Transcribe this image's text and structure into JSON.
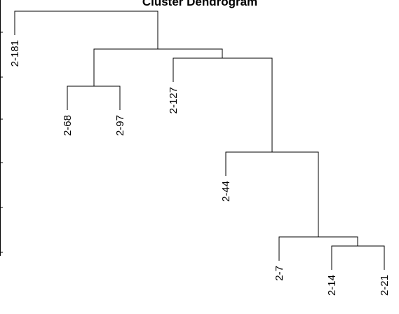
{
  "title": "Cluster Dendrogram",
  "leaves": [
    "2-181",
    "2-68",
    "2-97",
    "2-127",
    "2-44",
    "2-7",
    "2-14",
    "2-21"
  ]
}
